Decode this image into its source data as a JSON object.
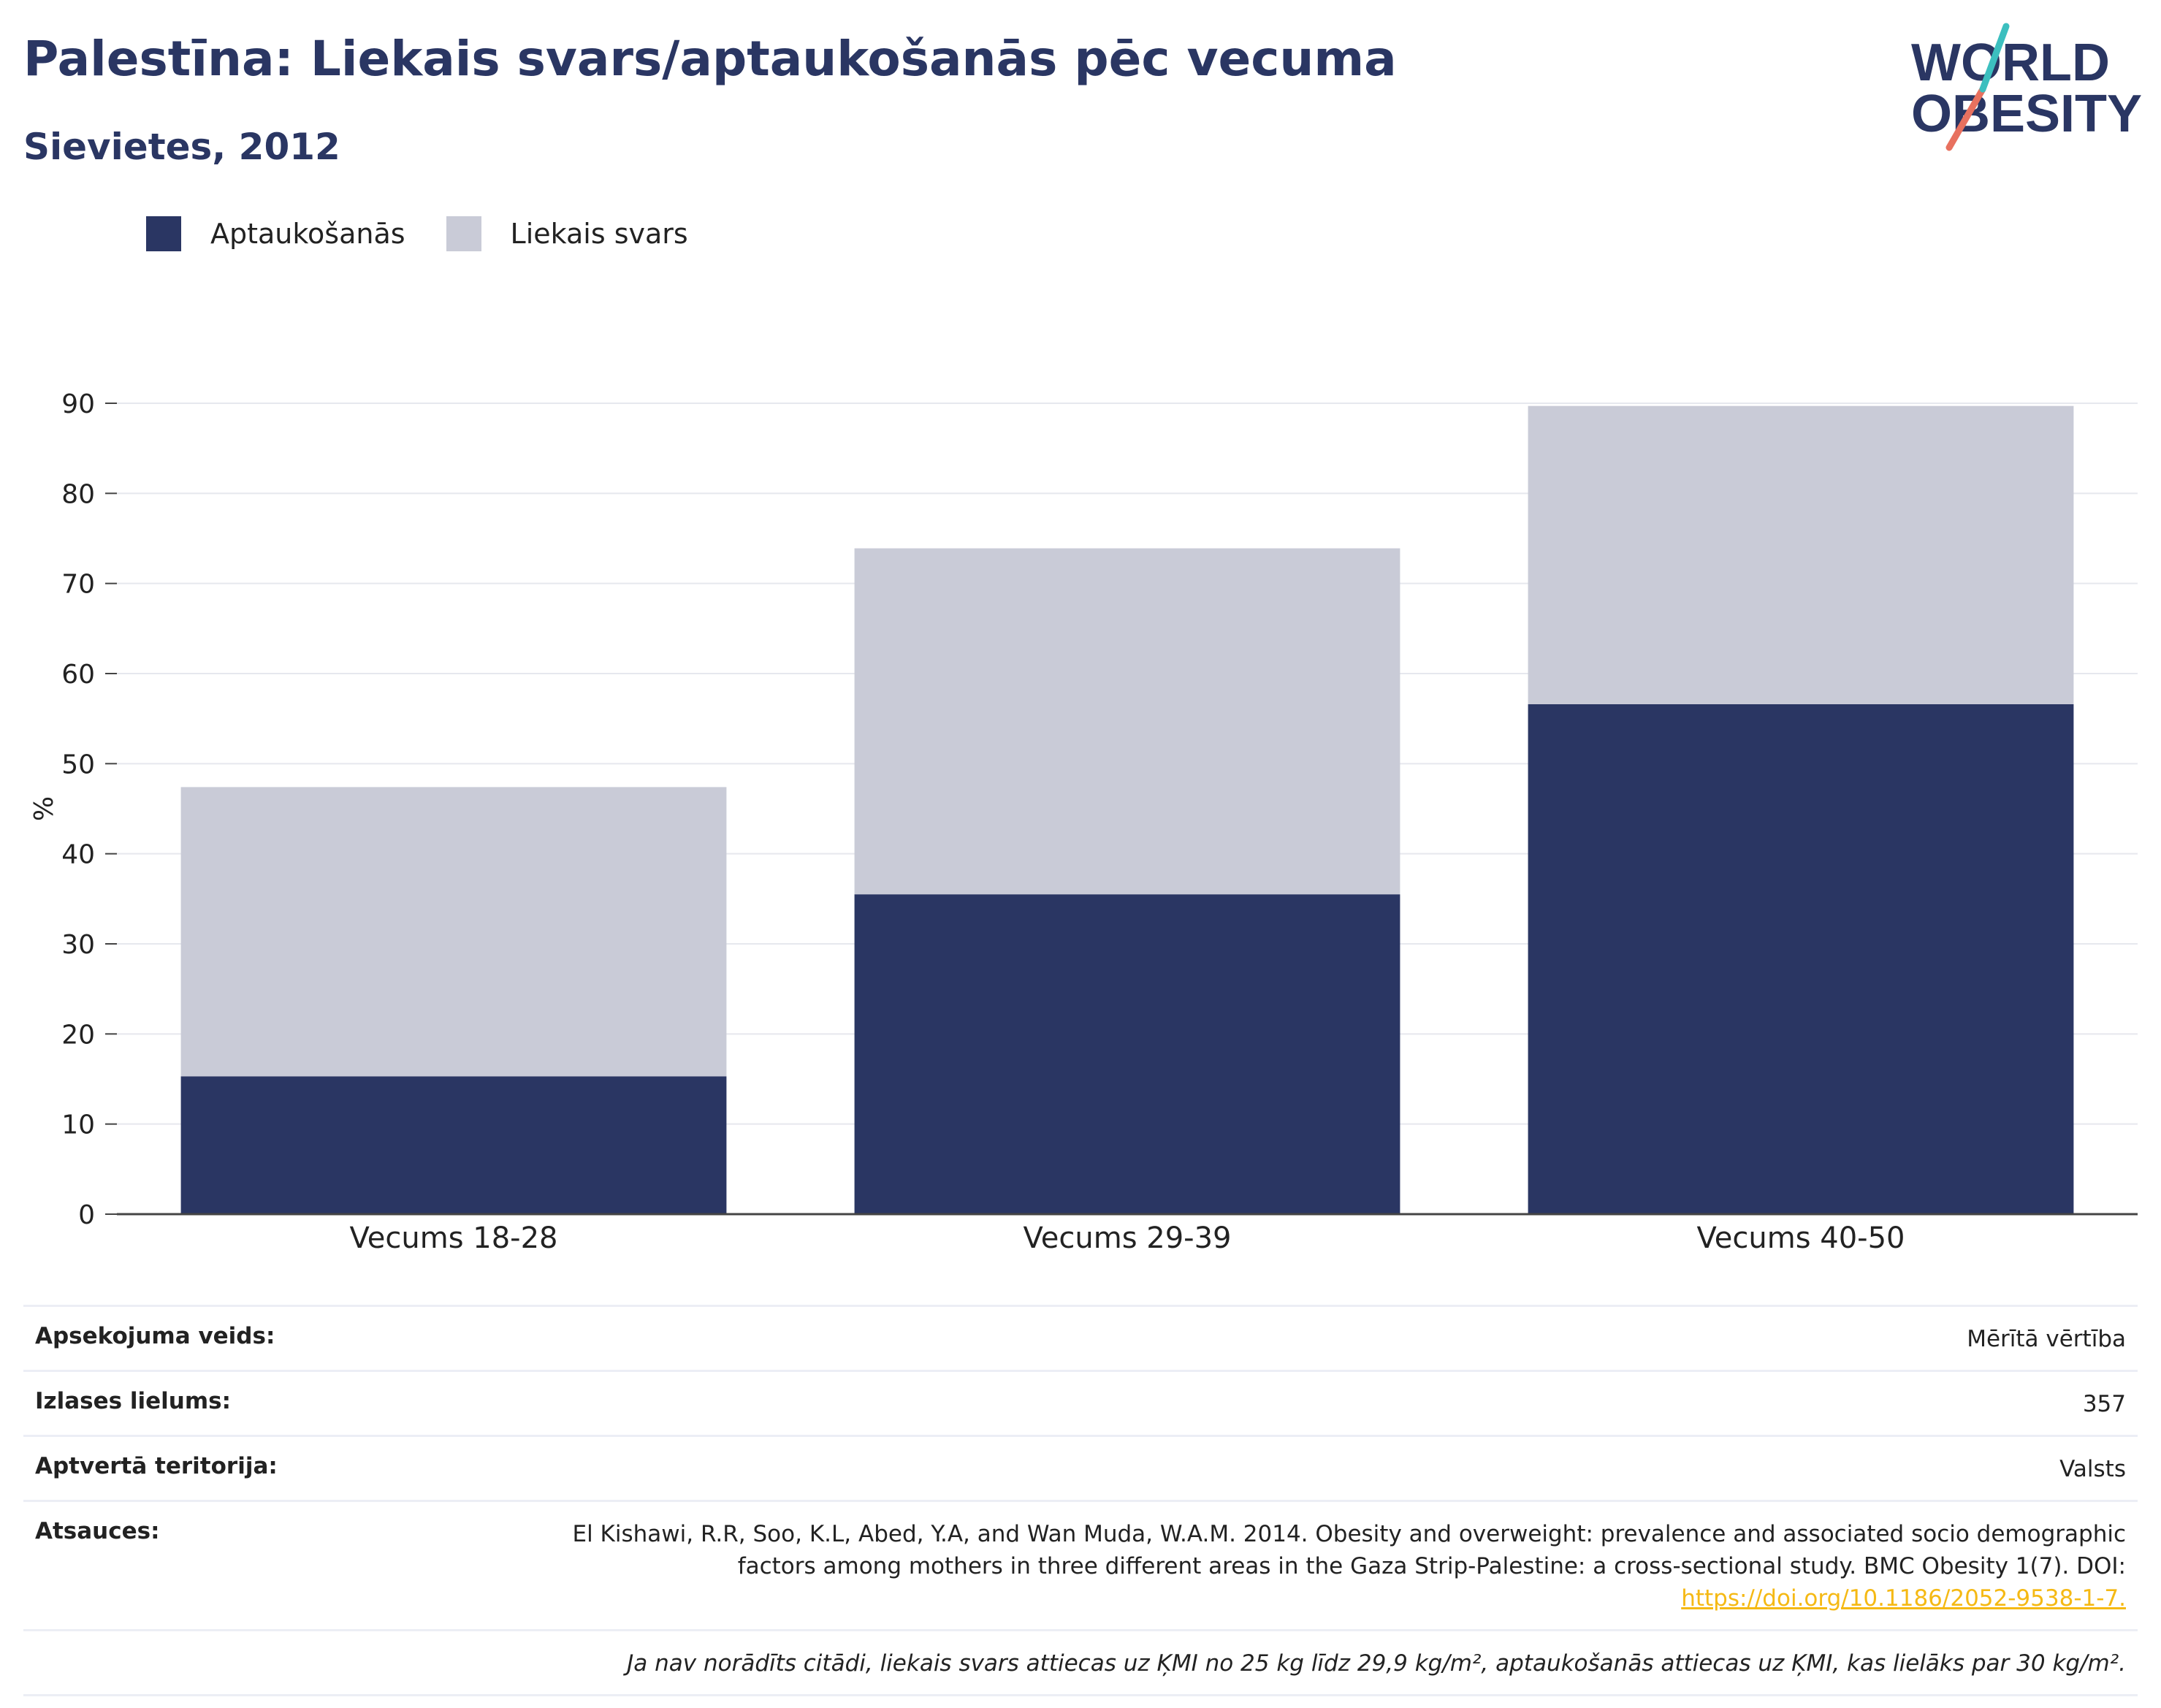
{
  "header": {
    "title": "Palestīna: Liekais svars/aptaukošanās pēc vecuma",
    "subtitle": "Sievietes, 2012",
    "logo_line1": "WORLD",
    "logo_line2": "OBESITY"
  },
  "colors": {
    "obesity": "#2a3663",
    "overweight": "#c9cbd7",
    "accent_teal": "#3cbfbf",
    "accent_coral": "#e8715f",
    "doi_link": "#f5b914"
  },
  "legend": [
    {
      "label": "Aptaukošanās",
      "color": "#2a3663"
    },
    {
      "label": "Liekais svars",
      "color": "#c9cbd7"
    }
  ],
  "chart_data": {
    "type": "bar",
    "stacked": true,
    "categories": [
      "Vecums 18-28",
      "Vecums 29-39",
      "Vecums 40-50"
    ],
    "series": [
      {
        "name": "Aptaukošanās",
        "values": [
          15.3,
          35.5,
          56.6
        ]
      },
      {
        "name": "Liekais svars",
        "values": [
          32.1,
          38.4,
          33.1
        ]
      }
    ],
    "ylabel": "%",
    "yticks": [
      0,
      10,
      20,
      30,
      40,
      50,
      60,
      70,
      80,
      90
    ],
    "ylim": [
      0,
      90
    ],
    "grid": true,
    "legend_position": "top-left"
  },
  "info": {
    "survey_type_label": "Apsekojuma veids:",
    "survey_type_value": "Mērītā vērtība",
    "sample_size_label": "Izlases lielums:",
    "sample_size_value": "357",
    "coverage_label": "Aptvertā teritorija:",
    "coverage_value": "Valsts",
    "references_label": "Atsauces:",
    "references_text": "El Kishawi, R.R, Soo, K.L, Abed, Y.A, and Wan Muda, W.A.M. 2014. Obesity and overweight: prevalence and associated socio demographic factors among mothers in three different areas in the Gaza Strip-Palestine: a cross-sectional study. BMC Obesity 1(7). DOI:",
    "references_doi": "https://doi.org/10.1186/2052-9538-1-7.",
    "footnote": "Ja nav norādīts citādi, liekais svars attiecas uz ĶMI no 25 kg līdz 29,9 kg/m², aptaukošanās attiecas uz ĶMI, kas lielāks par 30 kg/m²."
  }
}
